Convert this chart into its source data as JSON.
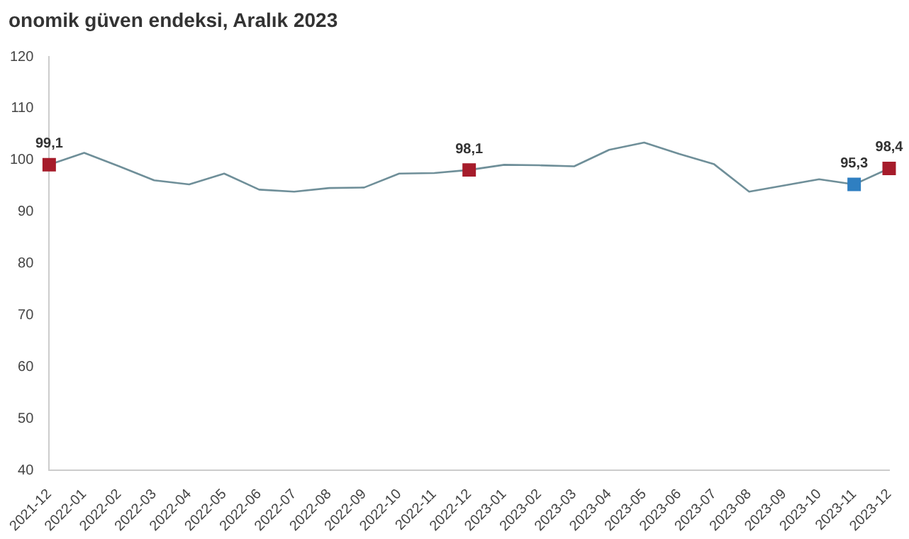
{
  "chart_data": {
    "type": "line",
    "title": "onomik güven endeksi, Aralık 2023",
    "categories": [
      "2021-12",
      "2022-01",
      "2022-02",
      "2022-03",
      "2022-04",
      "2022-05",
      "2022-06",
      "2022-07",
      "2022-08",
      "2022-09",
      "2022-10",
      "2022-11",
      "2022-12",
      "2023-01",
      "2023-02",
      "2023-03",
      "2023-04",
      "2023-05",
      "2023-06",
      "2023-07",
      "2023-08",
      "2023-09",
      "2023-10",
      "2023-11",
      "2023-12"
    ],
    "ylim": [
      40,
      120
    ],
    "yticks": [
      40,
      50,
      60,
      70,
      80,
      90,
      100,
      110,
      120
    ],
    "grid": false,
    "legend": false,
    "series": [
      {
        "color": "#6f8f99",
        "marker": "none",
        "values": [
          99.1,
          101.4,
          98.8,
          96.1,
          95.3,
          97.4,
          94.3,
          93.9,
          94.6,
          94.7,
          97.4,
          97.5,
          98.1,
          99.1,
          99.0,
          98.8,
          102.0,
          103.4,
          101.2,
          99.2,
          93.9,
          95.1,
          96.3,
          95.3,
          98.4
        ]
      },
      {
        "type": "scatter",
        "marker": "square",
        "values": [
          99.1,
          null,
          null,
          null,
          null,
          null,
          null,
          null,
          null,
          null,
          null,
          null,
          98.1,
          null,
          null,
          null,
          null,
          null,
          null,
          null,
          null,
          null,
          null,
          95.3,
          98.4
        ],
        "colors": [
          "#a61c2b",
          null,
          null,
          null,
          null,
          null,
          null,
          null,
          null,
          null,
          null,
          null,
          "#a61c2b",
          null,
          null,
          null,
          null,
          null,
          null,
          null,
          null,
          null,
          null,
          "#2f7fc1",
          "#a61c2b"
        ],
        "value_labels": [
          "99,1",
          null,
          null,
          null,
          null,
          null,
          null,
          null,
          null,
          null,
          null,
          null,
          "98,1",
          null,
          null,
          null,
          null,
          null,
          null,
          null,
          null,
          null,
          null,
          "95,3",
          "98,4"
        ]
      }
    ]
  }
}
